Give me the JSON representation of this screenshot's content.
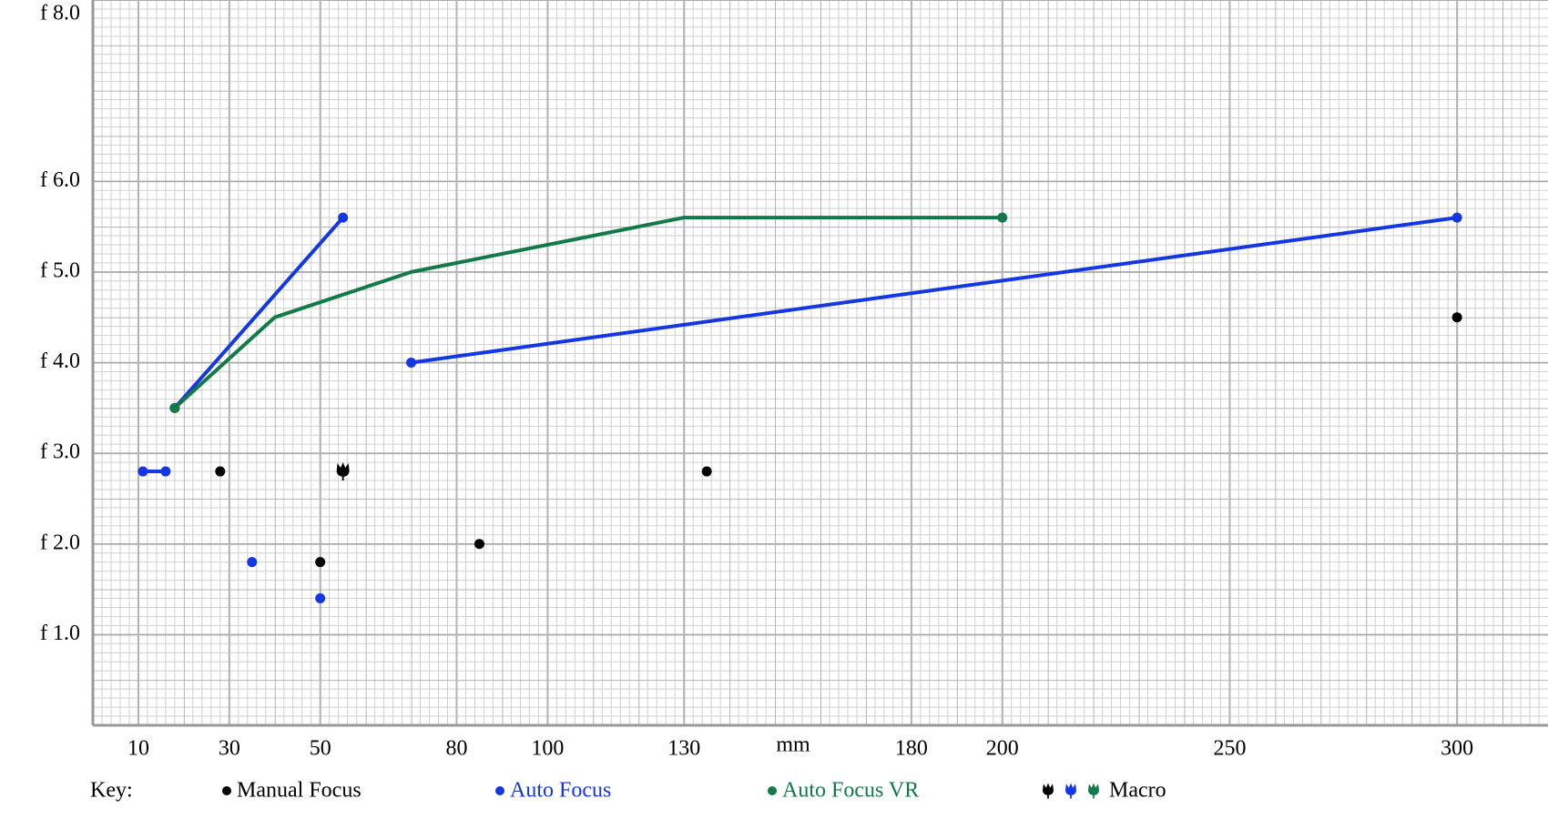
{
  "chart_data": {
    "type": "line",
    "x_label": "mm",
    "legend_title": "Key:",
    "xlim": [
      0,
      320
    ],
    "ylim": [
      0,
      8
    ],
    "xticks": [
      10,
      30,
      50,
      80,
      100,
      130,
      180,
      200,
      250,
      300
    ],
    "yticks": [
      {
        "value": 1,
        "label": "f 1.0"
      },
      {
        "value": 2,
        "label": "f 2.0"
      },
      {
        "value": 3,
        "label": "f 3.0"
      },
      {
        "value": 4,
        "label": "f 4.0"
      },
      {
        "value": 5,
        "label": "f 5.0"
      },
      {
        "value": 6,
        "label": "f 6.0"
      },
      {
        "value": 8,
        "label": "f 8.0"
      }
    ],
    "grid": true,
    "series": [
      {
        "name": "Manual Focus",
        "color": "#000000",
        "marker": "dot",
        "x": [
          28,
          null,
          50,
          null,
          85,
          null,
          135,
          null,
          300
        ],
        "values": [
          2.8,
          null,
          1.8,
          null,
          2.0,
          null,
          2.8,
          null,
          4.5
        ]
      },
      {
        "name": "Auto Focus",
        "color": "#1437e6",
        "marker": "dot",
        "x": [
          11,
          16,
          null,
          18,
          55,
          null,
          70,
          300,
          null,
          35,
          null,
          50
        ],
        "values": [
          2.8,
          2.8,
          null,
          3.5,
          5.6,
          null,
          4.0,
          5.6,
          null,
          1.8,
          null,
          1.4
        ]
      },
      {
        "name": "Auto Focus VR",
        "color": "#127a48",
        "marker": "dot",
        "x": [
          18,
          40,
          70,
          130,
          200
        ],
        "values": [
          3.5,
          4.5,
          5.0,
          5.6,
          5.6
        ]
      },
      {
        "name": "Macro",
        "color": "#000000",
        "marker": "macro",
        "x": [
          55
        ],
        "values": [
          2.8
        ]
      }
    ]
  }
}
